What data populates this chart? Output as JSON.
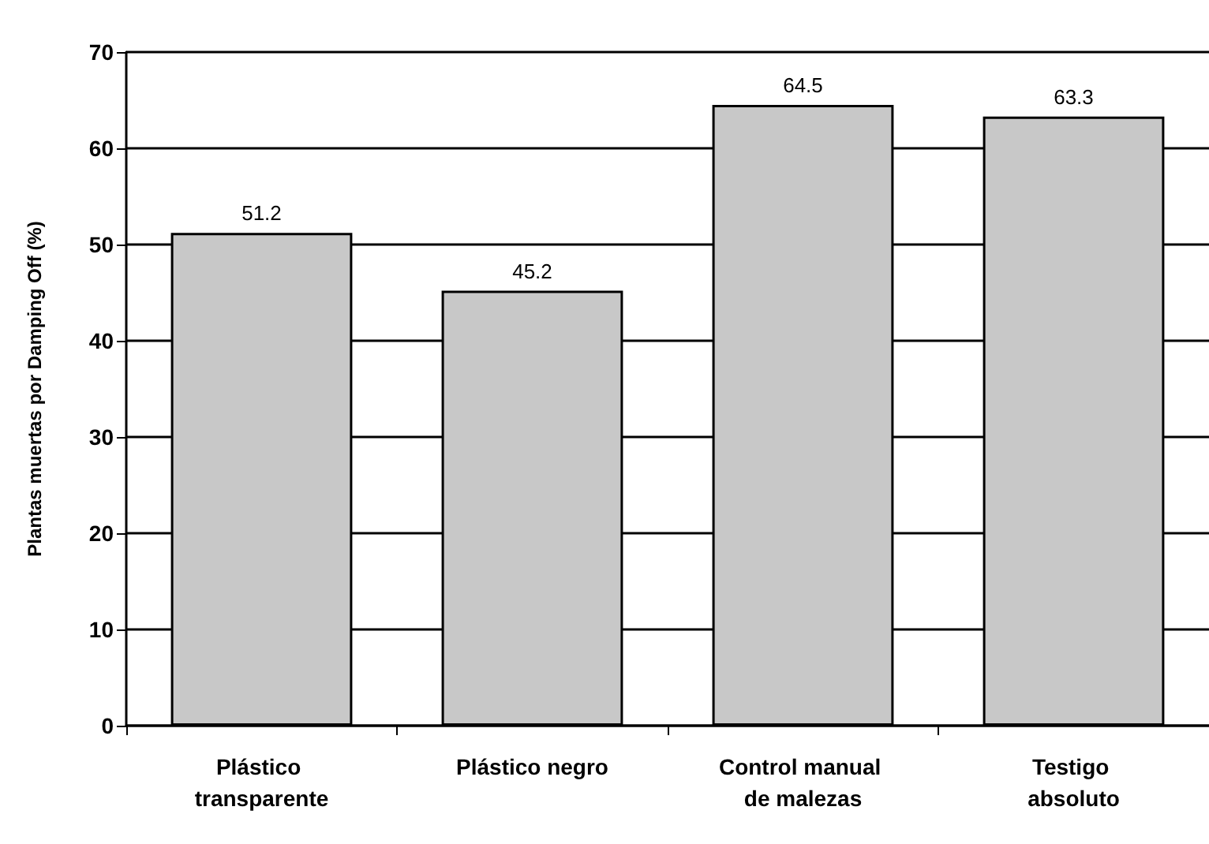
{
  "chart_data": {
    "type": "bar",
    "ylabel": "Plantas muertas por Damping Off (%)",
    "categories": [
      "Plástico transparente",
      "Plástico negro",
      "Control manual de malezas",
      "Testigo absoluto"
    ],
    "values": [
      51.2,
      45.2,
      64.5,
      63.3
    ],
    "color": "#c8c8c8",
    "ylim": [
      0,
      70
    ],
    "yticks": [
      0,
      10,
      20,
      30,
      40,
      50,
      60,
      70
    ],
    "grid": "y",
    "data_labels": true
  }
}
